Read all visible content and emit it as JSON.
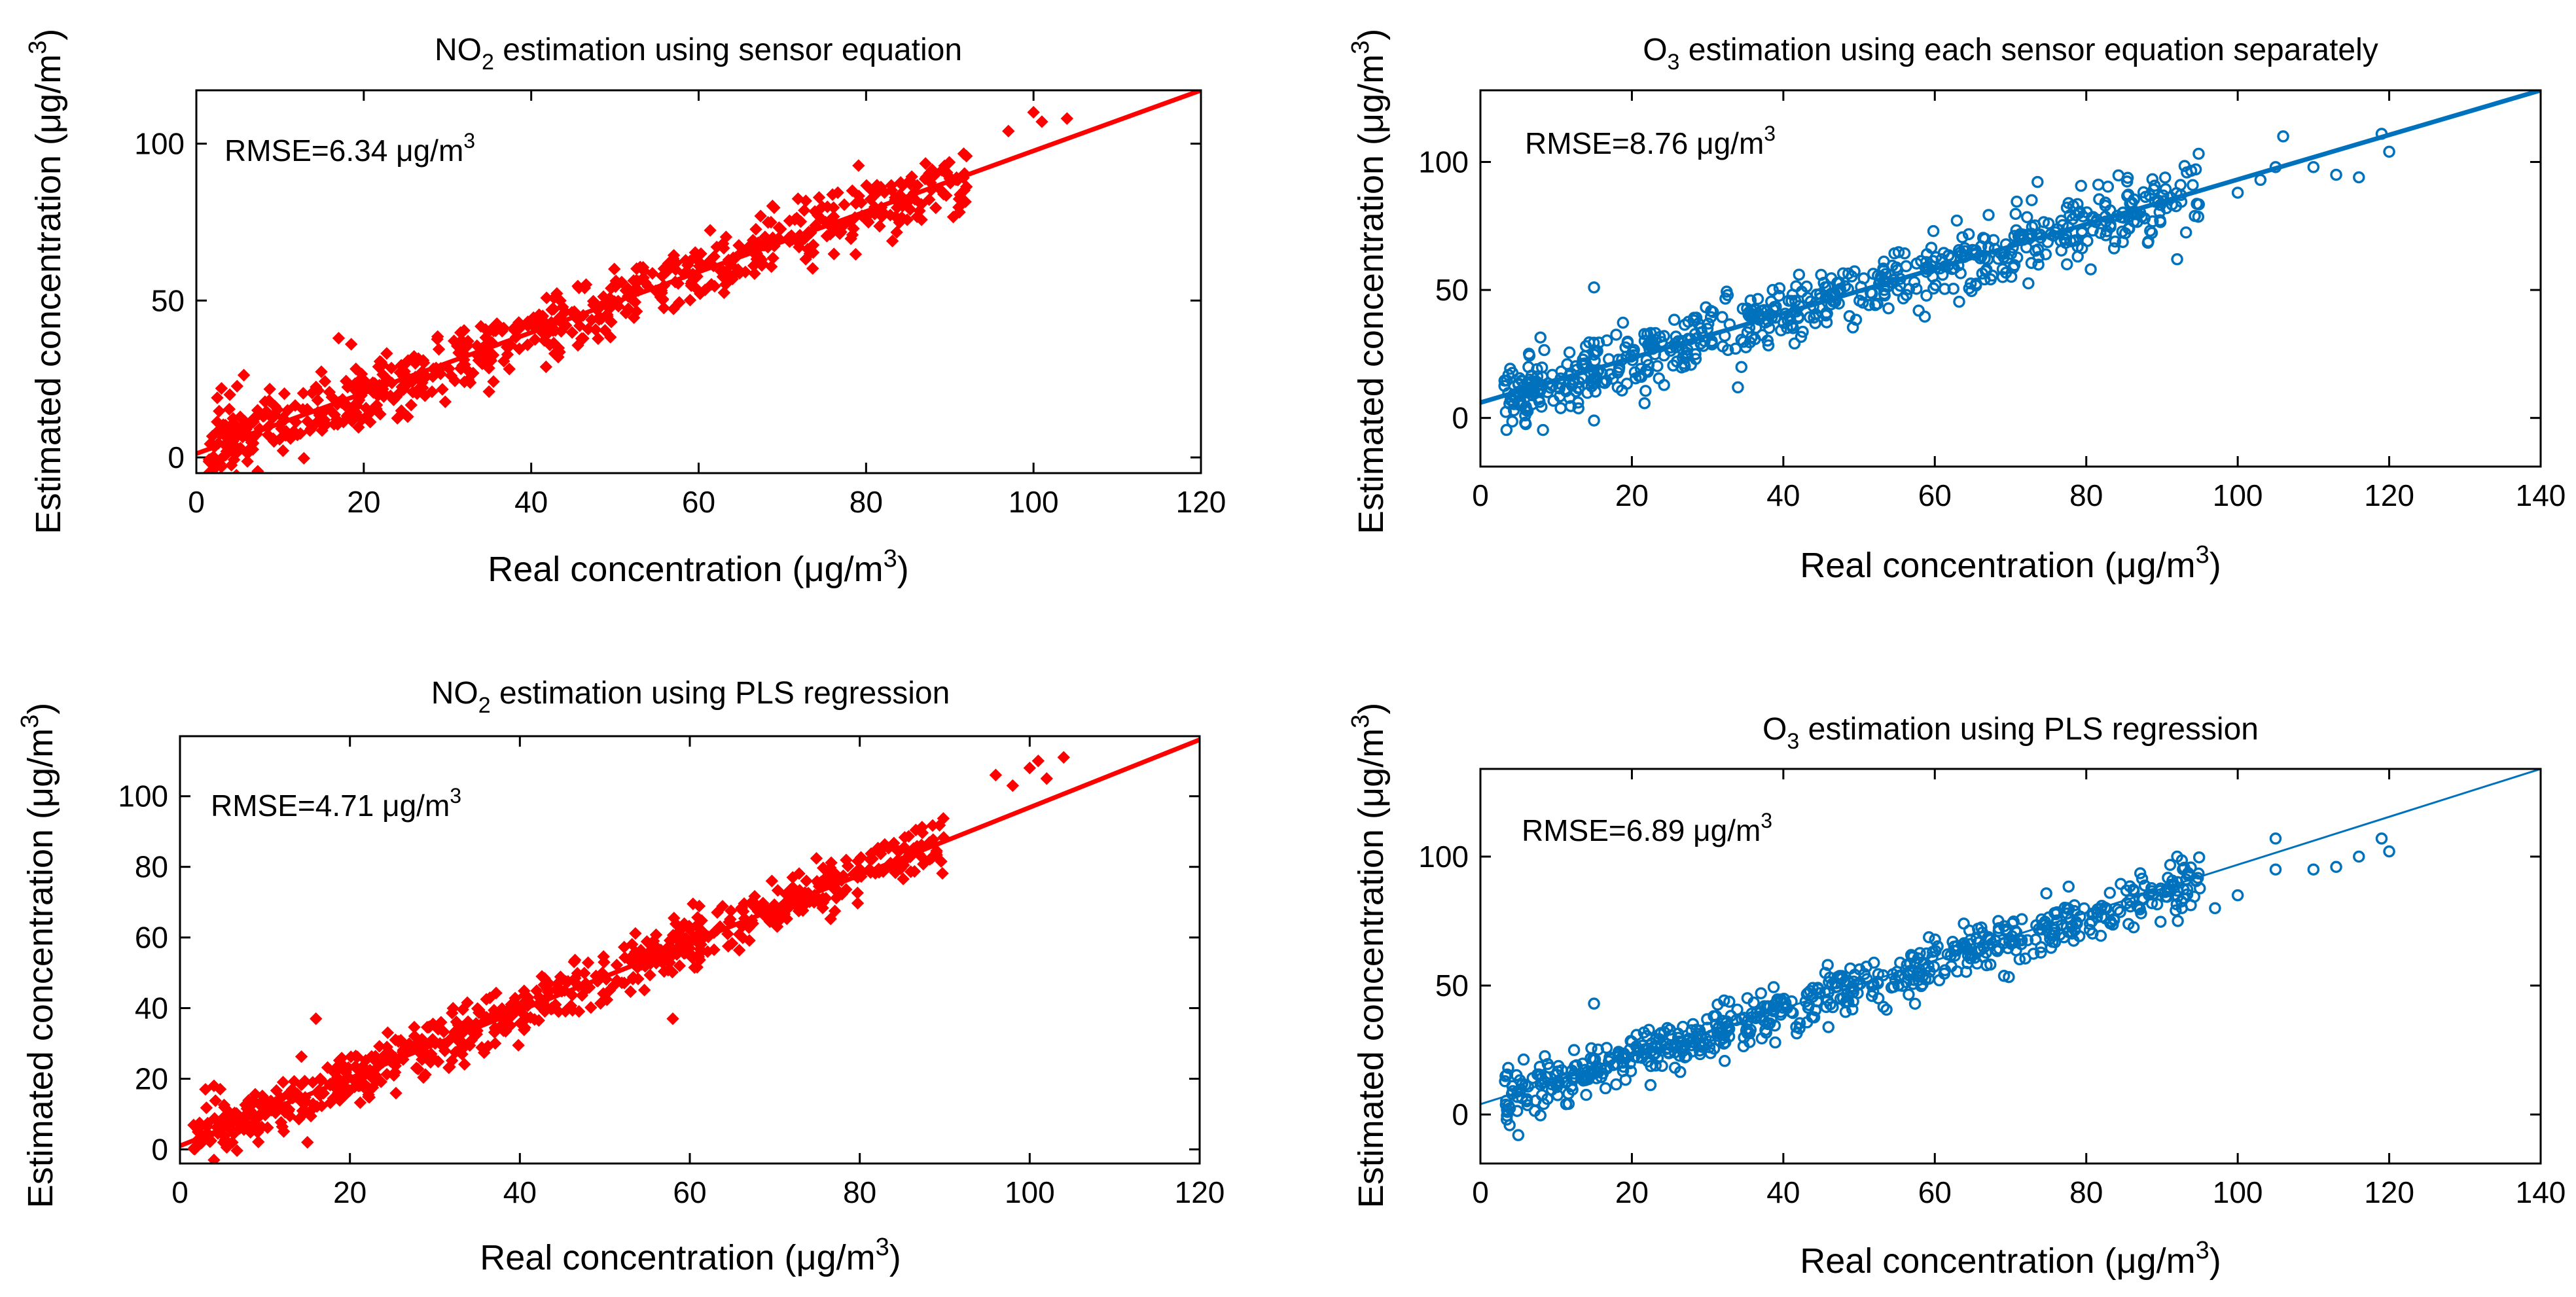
{
  "figure": {
    "description_source": "four scatter panels with fitted lines",
    "colors": {
      "red": "#ff0000",
      "blue": "#0072bd",
      "axis": "#000000"
    }
  },
  "chart_data": [
    {
      "type": "scatter",
      "id": "no2-sensor",
      "title_main": "NO",
      "title_sub": "2",
      "title_rest": "  estimation using sensor equation",
      "xlabel": "Real concentration (μg/m",
      "xlabel_sup": "3",
      "xlabel_end": ")",
      "ylabel": "Estimated concentration (μg/m",
      "ylabel_sup": "3",
      "ylabel_end": ")",
      "xlim": [
        0,
        120
      ],
      "ylim": [
        -5,
        117
      ],
      "xticks": [
        0,
        20,
        40,
        60,
        80,
        100,
        120
      ],
      "yticks": [
        0,
        50,
        100
      ],
      "rmse_text": "RMSE=6.34 μg/m",
      "rmse_sup": "3",
      "fit_line": {
        "x": [
          0,
          120
        ],
        "y": [
          1.2,
          117
        ]
      },
      "marker": "diamond",
      "color": "#ff0000",
      "gen": {
        "n": 700,
        "xmin": 1.5,
        "xmax": 92,
        "xscale": 1,
        "slope": 0.965,
        "intercept": 1.2,
        "noise": 5.5,
        "seed": 11
      },
      "extra_points": [
        [
          100,
          110
        ],
        [
          101,
          107
        ],
        [
          104,
          108
        ],
        [
          97,
          104
        ],
        [
          3,
          22
        ],
        [
          2.5,
          19
        ],
        [
          4,
          20
        ],
        [
          2,
          -4
        ],
        [
          3,
          -3
        ],
        [
          17,
          38
        ]
      ]
    },
    {
      "type": "scatter",
      "id": "o3-sensor",
      "title_main": "O",
      "title_sub": "3",
      "title_rest": "  estimation using each sensor equation separately",
      "xlabel": "Real concentration (μg/m",
      "xlabel_sup": "3",
      "xlabel_end": ")",
      "ylabel": "Estimated concentration (μg/m",
      "ylabel_sup": "3",
      "ylabel_end": ")",
      "xlim": [
        0,
        140
      ],
      "ylim": [
        -19,
        128
      ],
      "xticks": [
        0,
        20,
        40,
        60,
        80,
        100,
        120,
        140
      ],
      "yticks": [
        0,
        50,
        100
      ],
      "rmse_text": "RMSE=8.76 μg/m",
      "rmse_sup": "3",
      "fit_line": {
        "x": [
          0,
          140
        ],
        "y": [
          6,
          128
        ]
      },
      "marker": "circle",
      "color": "#0072bd",
      "gen": {
        "n": 650,
        "xmin": 3,
        "xmax": 95,
        "xscale": 1,
        "slope": 0.87,
        "intercept": 6,
        "noise": 6.5,
        "seed": 23
      },
      "extra_points": [
        [
          105,
          98
        ],
        [
          106,
          110
        ],
        [
          110,
          98
        ],
        [
          113,
          95
        ],
        [
          116,
          94
        ],
        [
          119,
          111
        ],
        [
          120,
          104
        ],
        [
          103,
          93
        ],
        [
          100,
          88
        ],
        [
          15,
          51
        ],
        [
          15,
          -1
        ],
        [
          92,
          62
        ]
      ]
    },
    {
      "type": "scatter",
      "id": "no2-pls",
      "title_main": "NO",
      "title_sub": "2",
      "title_rest": "  estimation using PLS regression",
      "xlabel": "Real concentration (μg/m",
      "xlabel_sup": "3",
      "xlabel_end": ")",
      "ylabel": "Estimated concentration (μg/m",
      "ylabel_sup": "3",
      "ylabel_end": ")",
      "xlim": [
        0,
        120
      ],
      "ylim": [
        -4,
        117
      ],
      "xticks": [
        0,
        20,
        40,
        60,
        80,
        100,
        120
      ],
      "yticks": [
        0,
        20,
        40,
        60,
        80,
        100
      ],
      "rmse_text": "RMSE=4.71 μg/m",
      "rmse_sup": "3",
      "fit_line": {
        "x": [
          0,
          120
        ],
        "y": [
          1,
          116
        ]
      },
      "marker": "diamond",
      "color": "#ff0000",
      "gen": {
        "n": 700,
        "xmin": 1.5,
        "xmax": 90,
        "xscale": 1,
        "slope": 0.96,
        "intercept": 1,
        "noise": 3.8,
        "seed": 37
      },
      "extra_points": [
        [
          96,
          106
        ],
        [
          98,
          103
        ],
        [
          100,
          108
        ],
        [
          102,
          105
        ],
        [
          104,
          111
        ],
        [
          101,
          110
        ],
        [
          4,
          18
        ],
        [
          3,
          17
        ],
        [
          4,
          -3
        ],
        [
          16,
          37
        ],
        [
          58,
          37
        ],
        [
          15,
          2
        ]
      ]
    },
    {
      "type": "scatter",
      "id": "o3-pls",
      "title_main": "O",
      "title_sub": "3",
      "title_rest": "  estimation using PLS regression",
      "xlabel": "Real concentration (μg/m",
      "xlabel_sup": "3",
      "xlabel_end": ")",
      "ylabel": "Estimated concentration (μg/m",
      "ylabel_sup": "3",
      "ylabel_end": ")",
      "xlim": [
        0,
        140
      ],
      "ylim": [
        -19,
        134
      ],
      "xticks": [
        0,
        20,
        40,
        60,
        80,
        100,
        120,
        140
      ],
      "yticks": [
        0,
        50,
        100
      ],
      "rmse_text": "RMSE=6.89 μg/m",
      "rmse_sup": "3",
      "fit_line": {
        "x": [
          0,
          140
        ],
        "y": [
          4,
          134
        ]
      },
      "marker": "circle",
      "color": "#0072bd",
      "thin_line": true,
      "gen": {
        "n": 650,
        "xmin": 3,
        "xmax": 95,
        "xscale": 1,
        "slope": 0.91,
        "intercept": 4,
        "noise": 5.0,
        "seed": 53
      },
      "extra_points": [
        [
          105,
          107
        ],
        [
          105,
          95
        ],
        [
          110,
          95
        ],
        [
          113,
          96
        ],
        [
          116,
          100
        ],
        [
          119,
          107
        ],
        [
          120,
          102
        ],
        [
          100,
          85
        ],
        [
          97,
          80
        ],
        [
          15,
          43
        ],
        [
          5,
          -8
        ],
        [
          92,
          100
        ]
      ]
    }
  ]
}
